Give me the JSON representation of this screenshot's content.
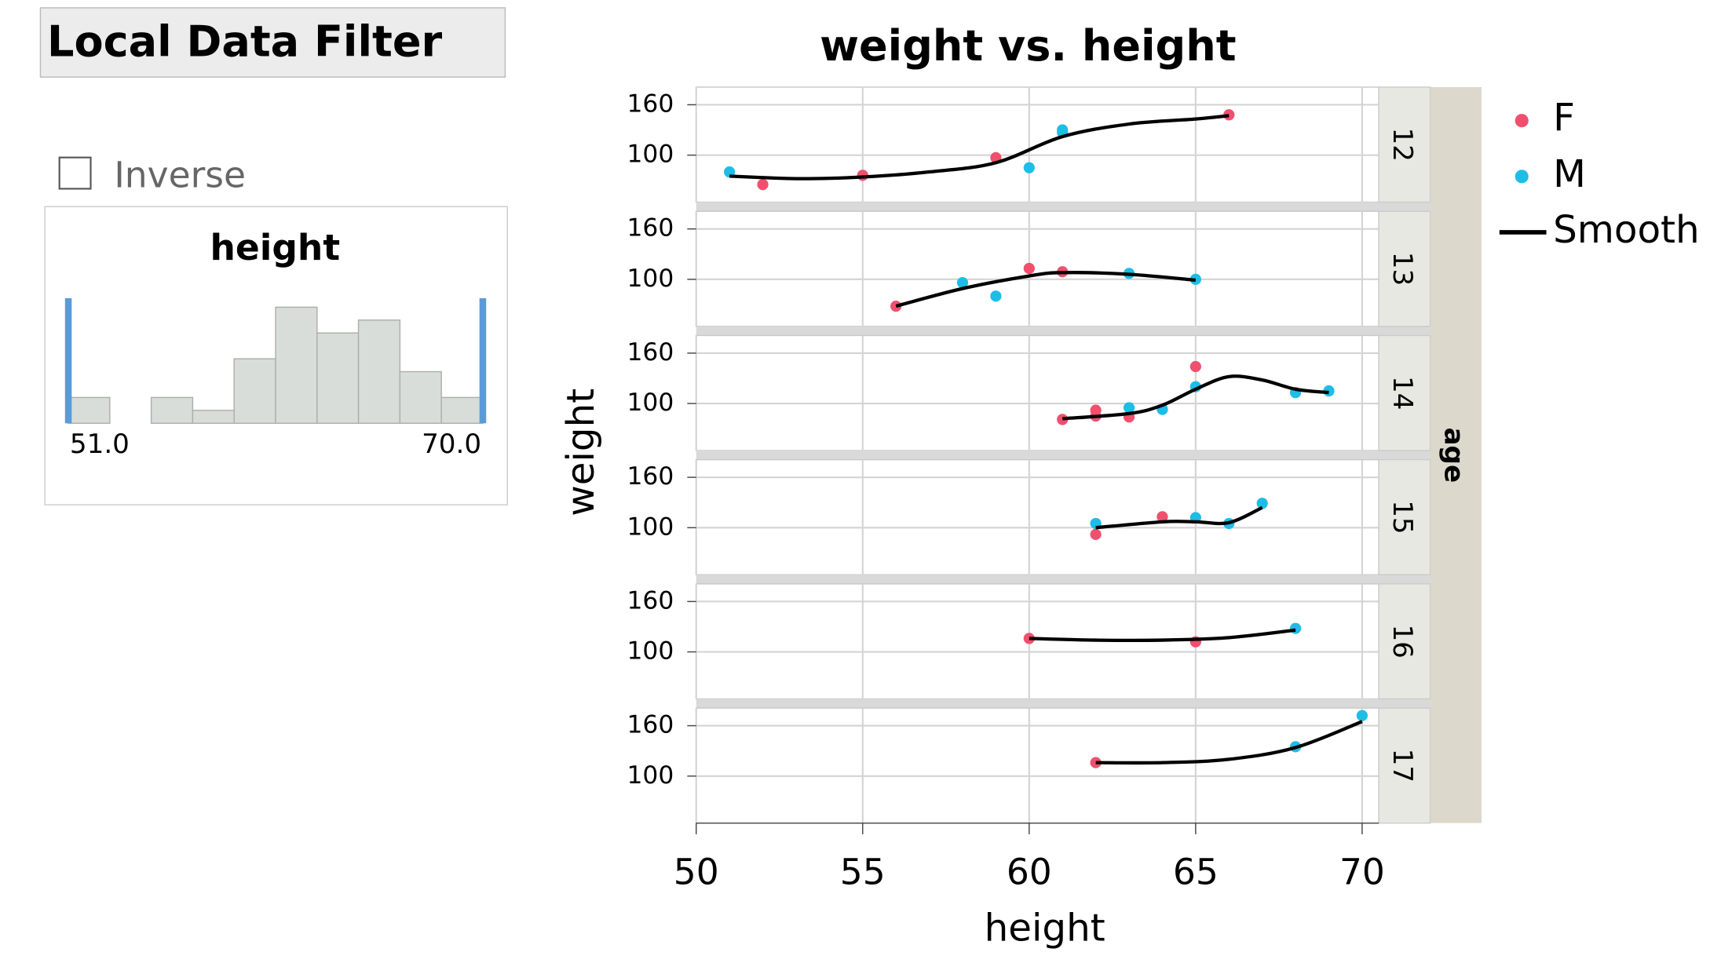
{
  "filter": {
    "title": "Local Data Filter",
    "inverse_label": "Inverse",
    "variable": "height",
    "bins": [
      51,
      52.9,
      54.8,
      56.7,
      58.6,
      60.5,
      62.4,
      64.3,
      66.2,
      68.1,
      70
    ],
    "counts": [
      2,
      0,
      2,
      1,
      5,
      9,
      7,
      8,
      4,
      2
    ],
    "range": [
      {
        "value": 51,
        "label": "51.0"
      },
      {
        "value": 70,
        "label": "70.0"
      }
    ]
  },
  "chart_data": {
    "type": "scatter",
    "title": "weight vs. height",
    "xlabel": "height",
    "ylabel": "weight",
    "facet_label": "age",
    "xlim": [
      50,
      70.5
    ],
    "xticks": [
      50,
      55,
      60,
      65,
      70
    ],
    "ylim": [
      44,
      181
    ],
    "yticks": [
      100,
      160
    ],
    "grid": true,
    "series": [
      {
        "name": "F",
        "color": "#f0506e"
      },
      {
        "name": "M",
        "color": "#1ebde6"
      },
      {
        "name": "Smooth",
        "color": "#000000"
      }
    ],
    "panels": [
      {
        "label": "12",
        "series": [
          {
            "x": [
              52,
              55,
              59,
              66
            ],
            "values": [
              65,
              76,
              97,
              148
            ]
          },
          {
            "x": [
              51,
              60,
              61,
              61
            ],
            "values": [
              80,
              85,
              130,
              127
            ]
          },
          {
            "x": [
              51,
              53,
              55,
              57,
              59,
              61,
              63,
              65,
              66
            ],
            "values": [
              75,
              72,
              74,
              80,
              91,
              122,
              137,
              143,
              147
            ]
          }
        ]
      },
      {
        "label": "13",
        "series": [
          {
            "x": [
              56,
              60,
              61
            ],
            "values": [
              68,
              113,
              109
            ]
          },
          {
            "x": [
              58,
              59,
              63,
              65
            ],
            "values": [
              96,
              80,
              107,
              100
            ]
          },
          {
            "x": [
              56,
              58,
              60,
              61,
              63,
              65
            ],
            "values": [
              68,
              89,
              104,
              108,
              106,
              99
            ]
          }
        ]
      },
      {
        "label": "14",
        "series": [
          {
            "x": [
              61,
              62,
              62,
              63,
              65
            ],
            "values": [
              81,
              92,
              85,
              84,
              144
            ]
          },
          {
            "x": [
              63,
              64,
              65,
              68,
              69
            ],
            "values": [
              95,
              93,
              120,
              113,
              115
            ]
          },
          {
            "x": [
              61,
              63,
              64,
              65,
              66,
              67,
              68,
              69
            ],
            "values": [
              82,
              88,
              98,
              117,
              132,
              128,
              117,
              113
            ]
          }
        ]
      },
      {
        "label": "15",
        "series": [
          {
            "x": [
              62,
              64
            ],
            "values": [
              92,
              113
            ]
          },
          {
            "x": [
              62,
              65,
              66,
              67
            ],
            "values": [
              105,
              112,
              105,
              129
            ]
          },
          {
            "x": [
              62,
              64,
              65,
              66,
              67
            ],
            "values": [
              100,
              107,
              107,
              106,
              124
            ]
          }
        ]
      },
      {
        "label": "16",
        "series": [
          {
            "x": [
              60,
              65
            ],
            "values": [
              116,
              112
            ]
          },
          {
            "x": [
              68
            ],
            "values": [
              128
            ]
          },
          {
            "x": [
              60,
              62,
              64,
              66,
              68
            ],
            "values": [
              116,
              114,
              114,
              117,
              126
            ]
          }
        ]
      },
      {
        "label": "17",
        "series": [
          {
            "x": [
              62
            ],
            "values": [
              116
            ]
          },
          {
            "x": [
              68,
              70
            ],
            "values": [
              135,
              172
            ]
          },
          {
            "x": [
              62,
              64,
              66,
              68,
              70
            ],
            "values": [
              116,
              116,
              120,
              134,
              165
            ]
          }
        ]
      }
    ]
  }
}
